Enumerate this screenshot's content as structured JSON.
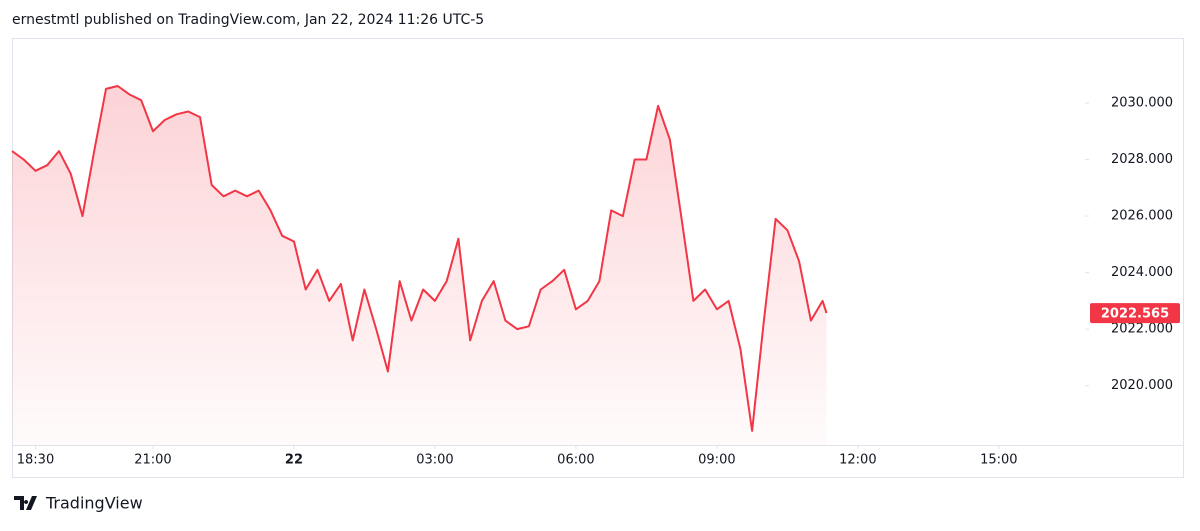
{
  "header": "ernestmtl published on TradingView.com, Jan 22, 2024 11:26 UTC-5",
  "footer": "TradingView",
  "chart_data": {
    "type": "area",
    "x": [
      "18:00",
      "18:15",
      "18:30",
      "18:45",
      "19:00",
      "19:15",
      "19:30",
      "19:45",
      "20:00",
      "20:15",
      "20:30",
      "20:45",
      "21:00",
      "21:15",
      "21:30",
      "21:45",
      "22:00",
      "22:15",
      "22:30",
      "22:45",
      "23:00",
      "23:15",
      "23:30",
      "23:45",
      "00:00",
      "00:15",
      "00:30",
      "00:45",
      "01:00",
      "01:15",
      "01:30",
      "01:45",
      "02:00",
      "02:15",
      "02:30",
      "02:45",
      "03:00",
      "03:15",
      "03:30",
      "03:45",
      "04:00",
      "04:15",
      "04:30",
      "04:45",
      "05:00",
      "05:15",
      "05:30",
      "05:45",
      "06:00",
      "06:15",
      "06:30",
      "06:45",
      "07:00",
      "07:15",
      "07:30",
      "07:45",
      "08:00",
      "08:15",
      "08:30",
      "08:45",
      "09:00",
      "09:15",
      "09:30",
      "09:45",
      "10:00",
      "10:15",
      "10:30",
      "10:45",
      "11:00",
      "11:15",
      "11:20"
    ],
    "series": [
      {
        "color": "#f23645",
        "values": [
          2028.3,
          2028.0,
          2027.6,
          2027.8,
          2028.3,
          2027.5,
          2026.0,
          2028.3,
          2030.5,
          2030.6,
          2030.3,
          2030.1,
          2029.0,
          2029.4,
          2029.6,
          2029.7,
          2029.5,
          2027.1,
          2026.7,
          2026.9,
          2026.7,
          2026.9,
          2026.2,
          2025.3,
          2025.1,
          2023.4,
          2024.1,
          2023.0,
          2023.6,
          2021.6,
          2023.4,
          2022.0,
          2020.5,
          2023.7,
          2022.3,
          2023.4,
          2023.0,
          2023.7,
          2025.2,
          2021.6,
          2023.0,
          2023.7,
          2022.3,
          2022.0,
          2022.1,
          2023.4,
          2023.7,
          2024.1,
          2022.7,
          2023.0,
          2023.7,
          2026.2,
          2026.0,
          2028.0,
          2028.0,
          2029.9,
          2028.7,
          2025.9,
          2023.0,
          2023.4,
          2022.7,
          2023.0,
          2021.3,
          2018.4,
          2022.3,
          2025.9,
          2025.5,
          2024.4,
          2022.3,
          2023.0,
          2022.565
        ]
      }
    ],
    "xlim": [
      "18:00",
      "16:50"
    ],
    "xticks": [
      "18:30",
      "21:00",
      {
        "value": "00:00",
        "label": "22"
      },
      "03:00",
      "06:00",
      "09:00",
      "12:00",
      "15:00"
    ],
    "ylim": [
      2017.9,
      2032.3
    ],
    "yticks": [
      {
        "value": 2020,
        "label": "2020.000"
      },
      {
        "value": 2022,
        "label": "2022.000"
      },
      {
        "value": 2024,
        "label": "2024.000"
      },
      {
        "value": 2026,
        "label": "2026.000"
      },
      {
        "value": 2028,
        "label": "2028.000"
      },
      {
        "value": 2030,
        "label": "2030.000"
      }
    ]
  }
}
